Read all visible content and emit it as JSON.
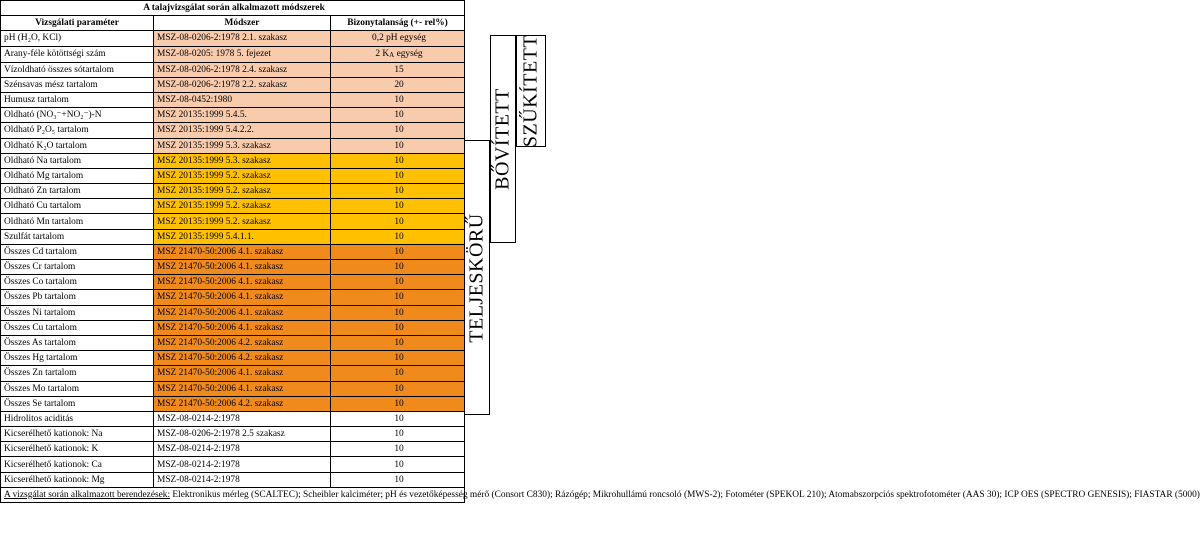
{
  "title": "A talajvizsgálat során alkalmazott módszerek",
  "headers": {
    "parameter": "Vizsgálati paraméter",
    "method": "Módszer",
    "uncertainty": "Bizonytalanság (+- rel%)"
  },
  "rows": [
    {
      "param": "pH (H₂O, KCl)",
      "method": "MSZ-08-0206-2:1978 2.1. szakasz",
      "value": "0,2 pH egység",
      "group": "g1"
    },
    {
      "param": "Arany-féle kötöttségi szám",
      "method": "MSZ-08-0205: 1978 5. fejezet",
      "value": "2 K_A egység",
      "group": "g1"
    },
    {
      "param": "Vízoldható összes sótartalom",
      "method": "MSZ-08-0206-2:1978 2.4. szakasz",
      "value": "15",
      "group": "g1"
    },
    {
      "param": "Szénsavas mész tartalom",
      "method": "MSZ-08-0206-2:1978 2.2. szakasz",
      "value": "20",
      "group": "g1"
    },
    {
      "param": "Humusz tartalom",
      "method": "MSZ-08-0452:1980",
      "value": "10",
      "group": "g1"
    },
    {
      "param": "Oldható (NO₃⁻+NO₂⁻)-N",
      "method": "MSZ 20135:1999 5.4.5.",
      "value": "10",
      "group": "g1"
    },
    {
      "param": "Oldható P₂O₅ tartalom",
      "method": "MSZ 20135:1999 5.4.2.2.",
      "value": "10",
      "group": "g1"
    },
    {
      "param": "Oldható K₂O tartalom",
      "method": "MSZ 20135:1999 5.3. szakasz",
      "value": "10",
      "group": "g1"
    },
    {
      "param": "Oldható Na tartalom",
      "method": "MSZ 20135:1999 5.3. szakasz",
      "value": "10",
      "group": "g2"
    },
    {
      "param": "Oldható Mg tartalom",
      "method": "MSZ 20135:1999 5.2. szakasz",
      "value": "10",
      "group": "g2"
    },
    {
      "param": "Oldható Zn tartalom",
      "method": "MSZ 20135:1999 5.2. szakasz",
      "value": "10",
      "group": "g2"
    },
    {
      "param": "Oldható Cu tartalom",
      "method": "MSZ 20135:1999 5.2. szakasz",
      "value": "10",
      "group": "g2"
    },
    {
      "param": "Oldható Mn tartalom",
      "method": "MSZ 20135:1999 5.2. szakasz",
      "value": "10",
      "group": "g2"
    },
    {
      "param": "Szulfát tartalom",
      "method": "MSZ 20135:1999 5.4.1.1.",
      "value": "10",
      "group": "g2"
    },
    {
      "param": "Összes Cd tartalom",
      "method": "MSZ 21470-50:2006 4.1. szakasz",
      "value": "10",
      "group": "g3"
    },
    {
      "param": "Összes Cr tartalom",
      "method": "MSZ 21470-50:2006 4.1. szakasz",
      "value": "10",
      "group": "g3"
    },
    {
      "param": "Összes Co tartalom",
      "method": "MSZ 21470-50:2006 4.1. szakasz",
      "value": "10",
      "group": "g3"
    },
    {
      "param": "Összes Pb tartalom",
      "method": "MSZ 21470-50:2006 4.1. szakasz",
      "value": "10",
      "group": "g3"
    },
    {
      "param": "Összes Ni tartalom",
      "method": "MSZ 21470-50:2006 4.1. szakasz",
      "value": "10",
      "group": "g3"
    },
    {
      "param": "Összes Cu tartalom",
      "method": "MSZ 21470-50:2006 4.1. szakasz",
      "value": "10",
      "group": "g3"
    },
    {
      "param": "Összes As tartalom",
      "method": "MSZ 21470-50:2006 4.2. szakasz",
      "value": "10",
      "group": "g3"
    },
    {
      "param": "Összes Hg tartalom",
      "method": "MSZ 21470-50:2006 4.2. szakasz",
      "value": "10",
      "group": "g3"
    },
    {
      "param": "Összes Zn tartalom",
      "method": "MSZ 21470-50:2006 4.1. szakasz",
      "value": "10",
      "group": "g3"
    },
    {
      "param": "Összes Mo tartalom",
      "method": "MSZ 21470-50:2006 4.1. szakasz",
      "value": "10",
      "group": "g3"
    },
    {
      "param": "Összes Se tartalom",
      "method": "MSZ 21470-50:2006 4.2. szakasz",
      "value": "10",
      "group": "g3"
    },
    {
      "param": "Hidrolitos aciditás",
      "method": "MSZ-08-0214-2:1978",
      "value": "10",
      "group": "none"
    },
    {
      "param": "Kicserélhető kationok: Na",
      "method": "MSZ-08-0206-2:1978 2.5 szakasz",
      "value": "10",
      "group": "none"
    },
    {
      "param": "Kicserélhető kationok: K",
      "method": "MSZ-08-0214-2:1978",
      "value": "10",
      "group": "none"
    },
    {
      "param": "Kicserélhető kationok: Ca",
      "method": "MSZ-08-0214-2:1978",
      "value": "10",
      "group": "none"
    },
    {
      "param": "Kicserélhető kationok: Mg",
      "method": "MSZ-08-0214-2:1978",
      "value": "10",
      "group": "none"
    }
  ],
  "footnote": {
    "lead": "A vizsgálat során alkalmazott berendezések:",
    "text": " Elektronikus mérleg (SCALTEC); Scheibler kalciméter; pH és vezetőképesség mérő (Consort C830); Rázógép; Mikrohullámú roncsoló (MWS-2); Fotométer (SPEKOL 210); Atomabszorpciós spektrofotométer (AAS 30); ICP OES (SPECTRO GENESIS); FIASTAR (5000)"
  },
  "bands": {
    "full": "TELJESKÖRŰ",
    "extended": "BŐVÍTETT",
    "narrowed": "SZŰKÍTETT"
  },
  "colors": {
    "group1": "#f8cbad",
    "group2": "#ffc000",
    "group3": "#f08a1c"
  }
}
